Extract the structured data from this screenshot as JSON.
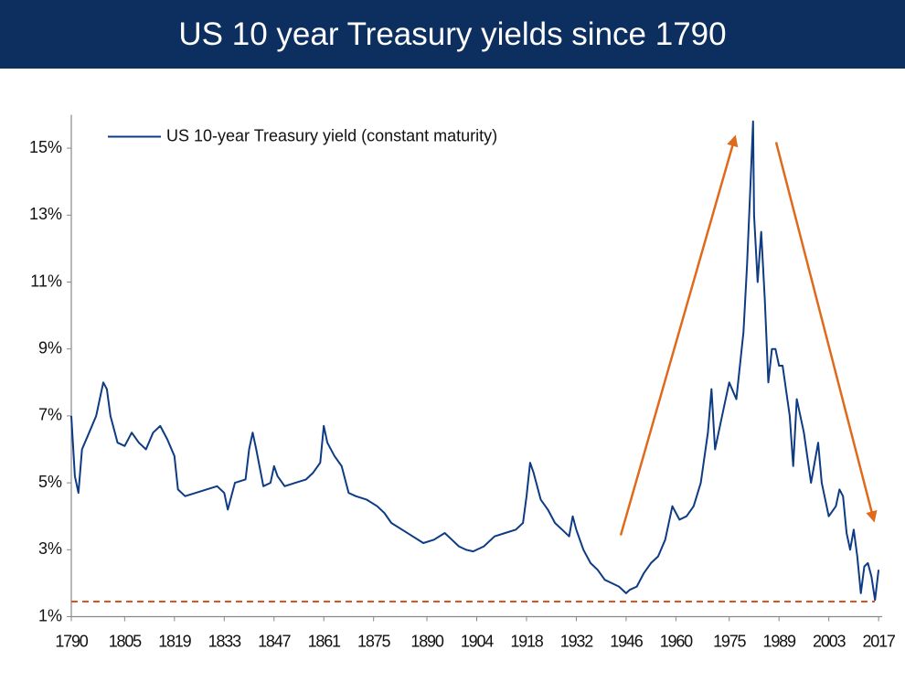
{
  "chart_data": {
    "type": "line",
    "title": "US 10 year Treasury yields since 1790",
    "xlim": [
      1790,
      2018
    ],
    "ylim": [
      1,
      16
    ],
    "xticks": [
      1790,
      1805,
      1819,
      1833,
      1847,
      1861,
      1875,
      1890,
      1904,
      1918,
      1932,
      1946,
      1960,
      1975,
      1989,
      2003,
      2017
    ],
    "yticks": [
      {
        "value": 1,
        "label": "1%"
      },
      {
        "value": 3,
        "label": "3%"
      },
      {
        "value": 5,
        "label": "5%"
      },
      {
        "value": 7,
        "label": "7%"
      },
      {
        "value": 9,
        "label": "9%"
      },
      {
        "value": 11,
        "label": "11%"
      },
      {
        "value": 13,
        "label": "13%"
      },
      {
        "value": 15,
        "label": "15%"
      }
    ],
    "legend": "upper left",
    "hline": 1.45,
    "hline_color": "#d9541e",
    "series": [
      {
        "name": "US 10-year Treasury yield (constant maturity)",
        "color": "#0d3b84",
        "x": [
          1790,
          1791,
          1792,
          1793,
          1795,
          1797,
          1798,
          1799,
          1800,
          1801,
          1803,
          1805,
          1807,
          1809,
          1811,
          1813,
          1815,
          1817,
          1819,
          1820,
          1822,
          1825,
          1828,
          1831,
          1833,
          1834,
          1836,
          1839,
          1840,
          1841,
          1842,
          1844,
          1846,
          1847,
          1848,
          1850,
          1853,
          1856,
          1858,
          1860,
          1861,
          1862,
          1864,
          1866,
          1868,
          1870,
          1873,
          1876,
          1878,
          1880,
          1883,
          1886,
          1889,
          1892,
          1895,
          1897,
          1899,
          1901,
          1903,
          1906,
          1909,
          1912,
          1915,
          1917,
          1918,
          1919,
          1920,
          1922,
          1924,
          1926,
          1928,
          1930,
          1931,
          1932,
          1934,
          1936,
          1938,
          1940,
          1942,
          1944,
          1946,
          1947,
          1949,
          1951,
          1953,
          1955,
          1957,
          1959,
          1961,
          1963,
          1965,
          1967,
          1969,
          1970,
          1971,
          1973,
          1975,
          1977,
          1978,
          1979,
          1980,
          1981,
          1981.7,
          1982,
          1983,
          1984,
          1985,
          1986,
          1987,
          1988,
          1989,
          1990,
          1992,
          1993,
          1994,
          1996,
          1998,
          2000,
          2001,
          2003,
          2005,
          2006,
          2007,
          2008,
          2009,
          2010,
          2011,
          2012,
          2013,
          2014,
          2015,
          2016,
          2017
        ],
        "values": [
          7,
          5.2,
          4.7,
          6,
          6.5,
          7,
          7.5,
          8.0,
          7.8,
          7,
          6.2,
          6.1,
          6.5,
          6.2,
          6.0,
          6.5,
          6.7,
          6.3,
          5.8,
          4.8,
          4.6,
          4.7,
          4.8,
          4.9,
          4.7,
          4.2,
          5.0,
          5.1,
          6.0,
          6.5,
          6.0,
          4.9,
          5.0,
          5.5,
          5.2,
          4.9,
          5.0,
          5.1,
          5.3,
          5.6,
          6.7,
          6.2,
          5.8,
          5.5,
          4.7,
          4.6,
          4.5,
          4.3,
          4.1,
          3.8,
          3.6,
          3.4,
          3.2,
          3.3,
          3.5,
          3.3,
          3.1,
          3.0,
          2.95,
          3.1,
          3.4,
          3.5,
          3.6,
          3.8,
          4.6,
          5.6,
          5.3,
          4.5,
          4.2,
          3.8,
          3.6,
          3.4,
          4.0,
          3.6,
          3.0,
          2.6,
          2.4,
          2.1,
          2.0,
          1.9,
          1.7,
          1.8,
          1.9,
          2.3,
          2.6,
          2.8,
          3.3,
          4.3,
          3.9,
          4.0,
          4.3,
          5.0,
          6.5,
          7.8,
          6.0,
          7.0,
          8.0,
          7.5,
          8.5,
          9.5,
          11.5,
          14.0,
          15.8,
          13,
          11,
          12.5,
          10.5,
          8,
          9.0,
          9.0,
          8.5,
          8.5,
          7.0,
          5.5,
          7.5,
          6.5,
          5.0,
          6.2,
          5.0,
          4.0,
          4.3,
          4.8,
          4.6,
          3.5,
          3.0,
          3.6,
          2.8,
          1.7,
          2.5,
          2.6,
          2.2,
          1.5,
          2.4
        ]
      }
    ]
  }
}
